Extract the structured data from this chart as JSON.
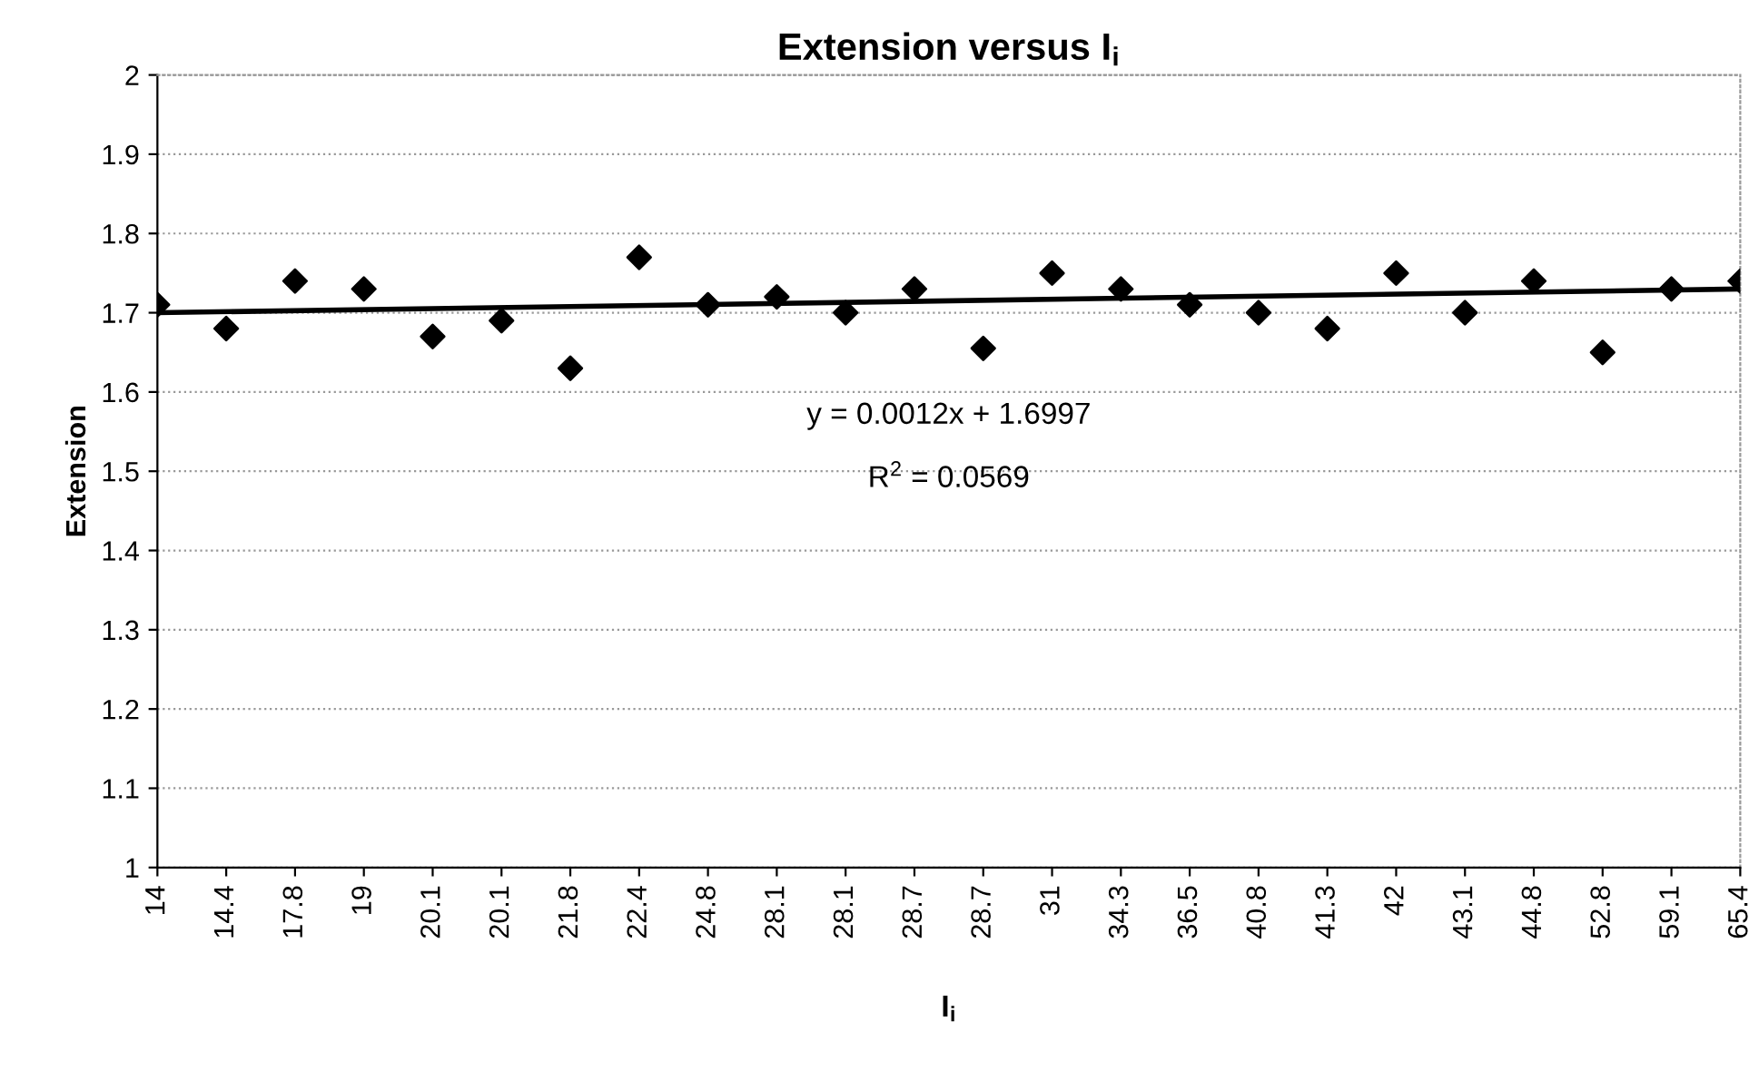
{
  "chart_data": {
    "type": "scatter",
    "title": "Extension versus I$_{i}$",
    "xlabel": "I$_{i}$",
    "ylabel": "Extension",
    "categories": [
      "14",
      "14.4",
      "17.8",
      "19",
      "20.1",
      "20.1",
      "21.8",
      "22.4",
      "24.8",
      "28.1",
      "28.1",
      "28.7",
      "28.7",
      "31",
      "34.3",
      "36.5",
      "40.8",
      "41.3",
      "42",
      "43.1",
      "44.8",
      "52.8",
      "59.1",
      "65.4"
    ],
    "series": [
      {
        "color": "#000000",
        "marker": "diamond",
        "values": [
          1.71,
          1.68,
          1.74,
          1.73,
          1.67,
          1.69,
          1.63,
          1.77,
          1.71,
          1.72,
          1.7,
          1.73,
          1.655,
          1.75,
          1.73,
          1.71,
          1.7,
          1.68,
          1.75,
          1.7,
          1.74,
          1.65,
          1.73,
          1.74
        ]
      },
      {
        "type": "line",
        "color": "#000000",
        "line_style": "solid",
        "values": [
          1.7,
          null,
          null,
          null,
          null,
          null,
          null,
          null,
          null,
          null,
          null,
          null,
          null,
          null,
          null,
          null,
          null,
          null,
          null,
          null,
          null,
          null,
          null,
          1.73
        ]
      }
    ],
    "ylim": [
      1,
      2
    ],
    "yticks": [
      1,
      1.1,
      1.2,
      1.3,
      1.4,
      1.5,
      1.6,
      1.7,
      1.8,
      1.9,
      2
    ],
    "grid": "y",
    "legend": false,
    "annotations": [
      "y = 0.0012x + 1.6997",
      "R$^{2}$ = 0.0569"
    ]
  }
}
